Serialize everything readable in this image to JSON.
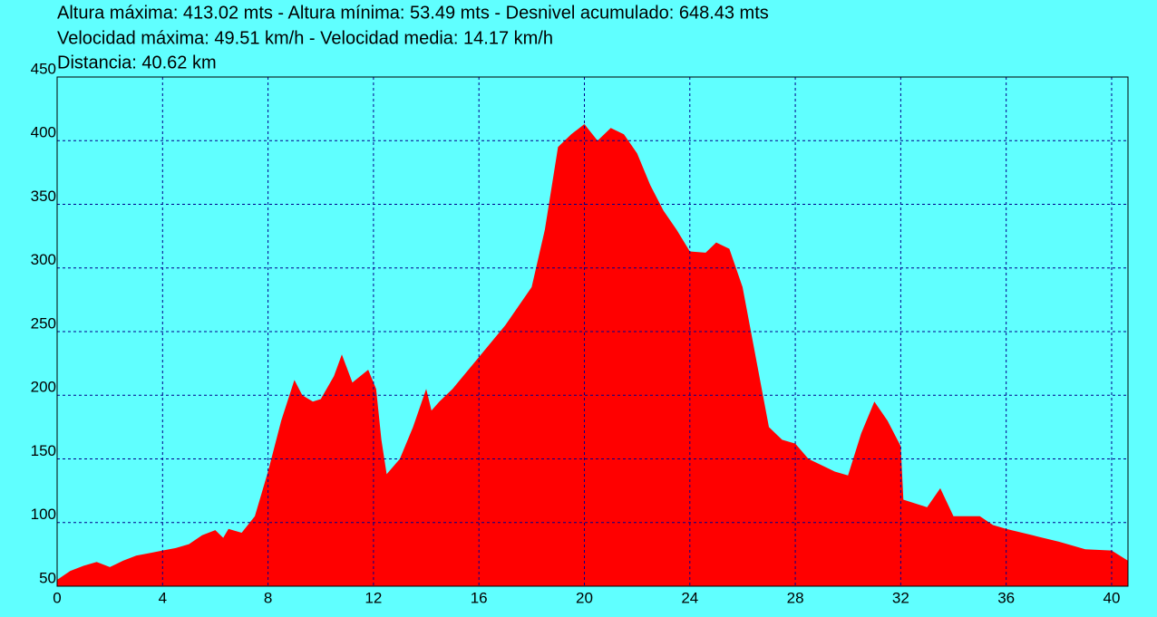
{
  "chart_data": {
    "type": "area",
    "title_lines": [
      "Altura máxima: 413.02 mts - Altura mínima: 53.49 mts - Desnivel acumulado: 648.43 mts",
      "Velocidad máxima: 49.51 km/h - Velocidad media: 14.17 km/h",
      "Distancia: 40.62 km"
    ],
    "x": [
      0,
      0.5,
      1,
      1.5,
      2,
      2.5,
      3,
      3.5,
      4,
      4.5,
      5,
      5.5,
      6,
      6.3,
      6.5,
      7,
      7.5,
      8,
      8.5,
      9,
      9.3,
      9.7,
      10,
      10.5,
      10.8,
      11.2,
      11.5,
      11.8,
      12.1,
      12.3,
      12.5,
      13,
      13.5,
      14,
      14.2,
      14.5,
      15,
      16,
      17,
      18,
      18.5,
      19,
      19.5,
      20,
      20.5,
      21,
      21.5,
      22,
      22.5,
      23,
      23.5,
      24,
      24.6,
      25,
      25.5,
      26,
      26.5,
      27,
      27.5,
      28,
      28.5,
      29,
      29.5,
      30,
      30.5,
      31,
      31.5,
      32,
      32.1,
      33,
      33.5,
      34,
      35,
      35.5,
      36,
      37,
      38,
      39,
      40,
      40.62
    ],
    "values": [
      55,
      62,
      66,
      69,
      65,
      70,
      74,
      76,
      78,
      80,
      83,
      90,
      94,
      88,
      95,
      92,
      105,
      140,
      180,
      212,
      200,
      195,
      197,
      215,
      232,
      210,
      215,
      220,
      205,
      165,
      138,
      150,
      175,
      205,
      188,
      195,
      205,
      230,
      255,
      285,
      330,
      395,
      405,
      413,
      400,
      410,
      405,
      390,
      365,
      345,
      330,
      313,
      312,
      320,
      315,
      285,
      230,
      175,
      165,
      162,
      150,
      145,
      140,
      137,
      170,
      195,
      180,
      160,
      118,
      112,
      127,
      105,
      105,
      98,
      95,
      90,
      85,
      79,
      78,
      70
    ],
    "color": "#ff0000",
    "xlim": [
      0,
      40.62
    ],
    "xticks": [
      0,
      4,
      8,
      12,
      16,
      20,
      24,
      28,
      32,
      36,
      40
    ],
    "ylim": [
      50,
      450
    ],
    "yticks": [
      50,
      100,
      150,
      200,
      250,
      300,
      350,
      400,
      450
    ],
    "grid": true
  }
}
